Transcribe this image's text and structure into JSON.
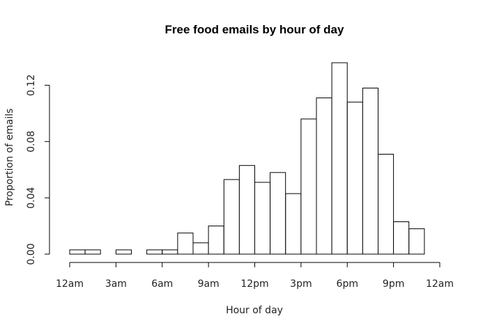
{
  "chart_data": {
    "type": "bar",
    "title": "Free food emails by hour of day",
    "xlabel": "Hour of day",
    "ylabel": "Proportion of emails",
    "xlim": [
      0,
      24
    ],
    "ylim": [
      0,
      0.14
    ],
    "x_ticks": [
      {
        "value": 0,
        "label": "12am"
      },
      {
        "value": 3,
        "label": "3am"
      },
      {
        "value": 6,
        "label": "6am"
      },
      {
        "value": 9,
        "label": "9am"
      },
      {
        "value": 12,
        "label": "12pm"
      },
      {
        "value": 15,
        "label": "3pm"
      },
      {
        "value": 18,
        "label": "6pm"
      },
      {
        "value": 21,
        "label": "9pm"
      },
      {
        "value": 24,
        "label": "12am"
      }
    ],
    "y_ticks": [
      {
        "value": 0.0,
        "label": "0.00"
      },
      {
        "value": 0.04,
        "label": "0.04"
      },
      {
        "value": 0.08,
        "label": "0.08"
      },
      {
        "value": 0.12,
        "label": "0.12"
      }
    ],
    "bins": [
      {
        "start": 0,
        "end": 1,
        "value": 0.003
      },
      {
        "start": 1,
        "end": 2,
        "value": 0.003
      },
      {
        "start": 2,
        "end": 3,
        "value": 0.0
      },
      {
        "start": 3,
        "end": 4,
        "value": 0.003
      },
      {
        "start": 4,
        "end": 5,
        "value": 0.0
      },
      {
        "start": 5,
        "end": 6,
        "value": 0.003
      },
      {
        "start": 6,
        "end": 7,
        "value": 0.003
      },
      {
        "start": 7,
        "end": 8,
        "value": 0.015
      },
      {
        "start": 8,
        "end": 9,
        "value": 0.008
      },
      {
        "start": 9,
        "end": 10,
        "value": 0.02
      },
      {
        "start": 10,
        "end": 11,
        "value": 0.053
      },
      {
        "start": 11,
        "end": 12,
        "value": 0.063
      },
      {
        "start": 12,
        "end": 13,
        "value": 0.051
      },
      {
        "start": 13,
        "end": 14,
        "value": 0.058
      },
      {
        "start": 14,
        "end": 15,
        "value": 0.043
      },
      {
        "start": 15,
        "end": 16,
        "value": 0.096
      },
      {
        "start": 16,
        "end": 17,
        "value": 0.111
      },
      {
        "start": 17,
        "end": 18,
        "value": 0.136
      },
      {
        "start": 18,
        "end": 19,
        "value": 0.108
      },
      {
        "start": 19,
        "end": 20,
        "value": 0.118
      },
      {
        "start": 20,
        "end": 21,
        "value": 0.071
      },
      {
        "start": 21,
        "end": 22,
        "value": 0.023
      },
      {
        "start": 22,
        "end": 23,
        "value": 0.018
      }
    ]
  }
}
